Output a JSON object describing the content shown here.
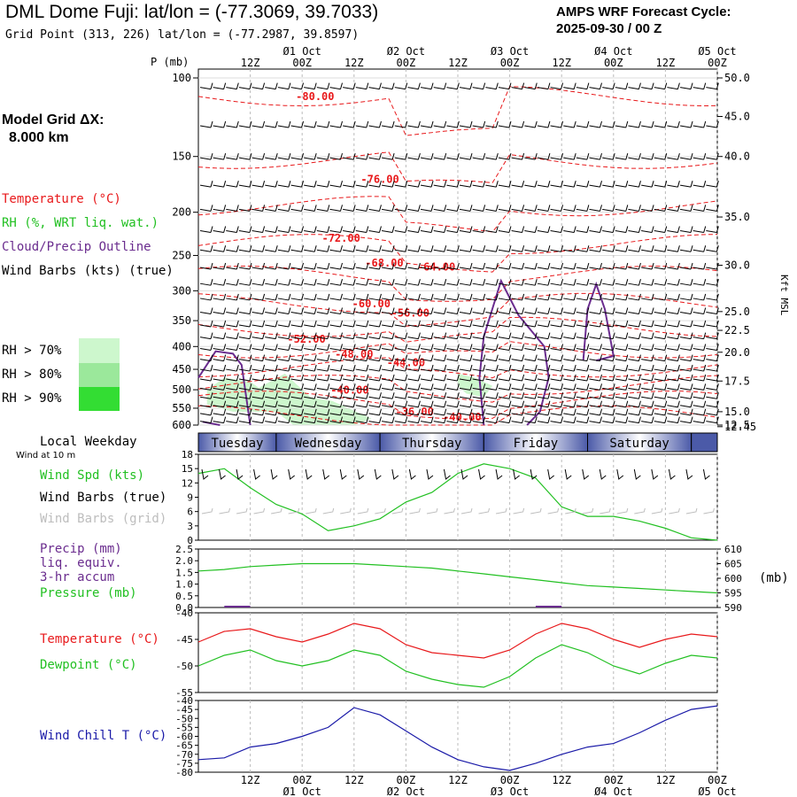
{
  "header": {
    "title": "DML Dome Fuji:  lat/lon = (-77.3069, 39.7033)",
    "grid_point": "Grid Point (313, 226) lat/lon = (-77.2987, 39.8597)",
    "cycle_label": "AMPS WRF Forecast Cycle:",
    "cycle_value": "2025-09-30 / 00  Z"
  },
  "left_legend": {
    "model_grid_label": "Model Grid ΔX:",
    "model_grid_value": "8.000 km",
    "temperature": "Temperature (°C)",
    "rh": "RH (%, WRT liq. wat.)",
    "cloud": "Cloud/Precip Outline",
    "wind": "Wind Barbs (kts) (true)",
    "rh70": "RH > 70%",
    "rh80": "RH > 80%",
    "rh90": "RH > 90%",
    "local_weekday": "Local Weekday",
    "wind_10m": "Wind at 10 m",
    "wind_spd": "Wind Spd (kts)",
    "wind_barbs_true": "Wind Barbs (true)",
    "wind_barbs_grid": "Wind Barbs (grid)",
    "precip": "Precip (mm)",
    "liq_equiv": "liq. equiv.",
    "accum": "3-hr accum",
    "pressure": "Pressure (mb)",
    "temp2": "Temperature (°C)",
    "dewpoint": "Dewpoint (°C)",
    "wind_chill": "Wind Chill T (°C)"
  },
  "colors": {
    "temperature": "#e8191b",
    "rh": "#22c022",
    "cloud": "#6a2c8e",
    "wind_chill": "#1a1aa8",
    "grid_barbs": "#bdbdbd",
    "rh70": "#cdf7cd",
    "rh80": "#9be89b",
    "rh90": "#33dd33",
    "day_band": "#4b5aa8"
  },
  "time_axis": {
    "hour_ticks": [
      "12Z",
      "00Z",
      "12Z",
      "00Z",
      "12Z",
      "00Z",
      "12Z",
      "00Z",
      "12Z",
      "00Z"
    ],
    "hour_values": [
      12,
      24,
      36,
      48,
      60,
      72,
      84,
      96,
      108,
      120
    ],
    "day_labels": [
      "01 Oct",
      "02 Oct",
      "03 Oct",
      "04 Oct",
      "05 Oct"
    ],
    "day_values": [
      24,
      48,
      72,
      96,
      120
    ],
    "range": [
      0,
      120
    ]
  },
  "weekdays": [
    {
      "name": "Tuesday",
      "start": 0,
      "end": 18
    },
    {
      "name": "Wednesday",
      "start": 18,
      "end": 42
    },
    {
      "name": "Thursday",
      "start": 42,
      "end": 66
    },
    {
      "name": "Friday",
      "start": 66,
      "end": 90
    },
    {
      "name": "Saturday",
      "start": 90,
      "end": 114
    }
  ],
  "chart_data": [
    {
      "type": "contour",
      "name": "cross-section",
      "y_label": "P (mb)",
      "y_right_label": "Kft MSL",
      "pressure_levels": [
        100,
        150,
        200,
        250,
        300,
        350,
        400,
        450,
        500,
        550,
        600
      ],
      "kft_ticks": [
        {
          "label": "50.0",
          "p": 100
        },
        {
          "label": "45.0",
          "p": 122
        },
        {
          "label": "40.0",
          "p": 150
        },
        {
          "label": "35.0",
          "p": 205
        },
        {
          "label": "30.0",
          "p": 263
        },
        {
          "label": "25.0",
          "p": 334
        },
        {
          "label": "22.5",
          "p": 368
        },
        {
          "label": "20.0",
          "p": 412
        },
        {
          "label": "17.5",
          "p": 478
        },
        {
          "label": "15.0",
          "p": 560
        },
        {
          "label": "12.5",
          "p": 600
        },
        {
          "label": "12.45",
          "p": 605
        }
      ],
      "temperature_labels": [
        {
          "text": "-80.00",
          "t": 27,
          "p": 112
        },
        {
          "text": "-76.00",
          "t": 42,
          "p": 172
        },
        {
          "text": "-72.00",
          "t": 33,
          "p": 233
        },
        {
          "text": "-68.00",
          "t": 43,
          "p": 265
        },
        {
          "text": "-64.00",
          "t": 55,
          "p": 270
        },
        {
          "text": "-60.00",
          "t": 40,
          "p": 327
        },
        {
          "text": "-56.00",
          "t": 49,
          "p": 343
        },
        {
          "text": "-52.00",
          "t": 25,
          "p": 392
        },
        {
          "text": "-48.00",
          "t": 36,
          "p": 424
        },
        {
          "text": "-44.00",
          "t": 48,
          "p": 443
        },
        {
          "text": "-40.00",
          "t": 35,
          "p": 510
        },
        {
          "text": "-36.00",
          "t": 50,
          "p": 571
        },
        {
          "text": "-40.00",
          "t": 61,
          "p": 587
        }
      ]
    },
    {
      "type": "line",
      "name": "wind",
      "ylim": [
        0,
        18
      ],
      "yticks": [
        0,
        3,
        6,
        9,
        12,
        15,
        18
      ],
      "x": [
        0,
        6,
        12,
        18,
        24,
        30,
        36,
        42,
        48,
        54,
        60,
        66,
        72,
        78,
        84,
        90,
        96,
        102,
        108,
        114,
        120
      ],
      "series": [
        {
          "name": "Wind Spd (kts)",
          "values": [
            14,
            15,
            11,
            7.5,
            5.5,
            2,
            3,
            4.5,
            8,
            10,
            14,
            16,
            15,
            13,
            7,
            5,
            5,
            4,
            2.5,
            0.5,
            0
          ]
        }
      ]
    },
    {
      "type": "line",
      "name": "precip-pressure",
      "ylim_left": [
        0,
        2.5
      ],
      "yticks_left": [
        "0.0",
        "0.5",
        "1.0",
        "1.5",
        "2.0",
        "2.5"
      ],
      "ylim_right": [
        590,
        610
      ],
      "yticks_right": [
        590,
        595,
        600,
        605,
        610
      ],
      "x": [
        0,
        6,
        12,
        18,
        24,
        30,
        36,
        42,
        48,
        54,
        60,
        66,
        72,
        78,
        84,
        90,
        96,
        102,
        108,
        114,
        120
      ],
      "series": [
        {
          "name": "Pressure (mb)",
          "values": [
            602.5,
            603,
            604,
            604.5,
            605,
            605,
            605,
            604.5,
            604,
            603.5,
            602.5,
            601.5,
            600.5,
            599.5,
            598.5,
            597.5,
            597,
            596.5,
            596,
            595.5,
            595
          ]
        },
        {
          "name": "Precip (mm)",
          "values": [
            0,
            0,
            0,
            0,
            0,
            0,
            0,
            0,
            0,
            0,
            0,
            0,
            0,
            0,
            0,
            0,
            0,
            0,
            0,
            0,
            0
          ]
        }
      ]
    },
    {
      "type": "line",
      "name": "temperature-dewpoint",
      "ylim": [
        -55,
        -40
      ],
      "yticks": [
        -55,
        -50,
        -45,
        -40
      ],
      "x": [
        0,
        6,
        12,
        18,
        24,
        30,
        36,
        42,
        48,
        54,
        60,
        66,
        72,
        78,
        84,
        90,
        96,
        102,
        108,
        114,
        120
      ],
      "series": [
        {
          "name": "Temperature (°C)",
          "values": [
            -45.5,
            -43.5,
            -43,
            -44.5,
            -45.5,
            -44,
            -42,
            -43,
            -46,
            -47.5,
            -48,
            -48.5,
            -47,
            -44,
            -42,
            -43,
            -45,
            -46.5,
            -45,
            -44,
            -44.5
          ]
        },
        {
          "name": "Dewpoint (°C)",
          "values": [
            -50,
            -48,
            -47,
            -49,
            -50,
            -49,
            -47,
            -48,
            -51,
            -52.5,
            -53.5,
            -54,
            -52,
            -48.5,
            -46,
            -47.5,
            -50,
            -51.5,
            -49.5,
            -48,
            -48.5
          ]
        }
      ]
    },
    {
      "type": "line",
      "name": "wind-chill",
      "ylim": [
        -80,
        -40
      ],
      "yticks": [
        -80,
        -75,
        -70,
        -65,
        -60,
        -55,
        -50,
        -45,
        -40
      ],
      "x": [
        0,
        6,
        12,
        18,
        24,
        30,
        36,
        42,
        48,
        54,
        60,
        66,
        72,
        78,
        84,
        90,
        96,
        102,
        108,
        114,
        120
      ],
      "series": [
        {
          "name": "Wind Chill T (°C)",
          "values": [
            -73,
            -72,
            -66,
            -64,
            -60,
            -55,
            -44,
            -48,
            -57,
            -66,
            -73,
            -77,
            -79,
            -75,
            -70,
            -66,
            -64,
            -58,
            -51,
            -45,
            -43
          ]
        }
      ]
    }
  ]
}
